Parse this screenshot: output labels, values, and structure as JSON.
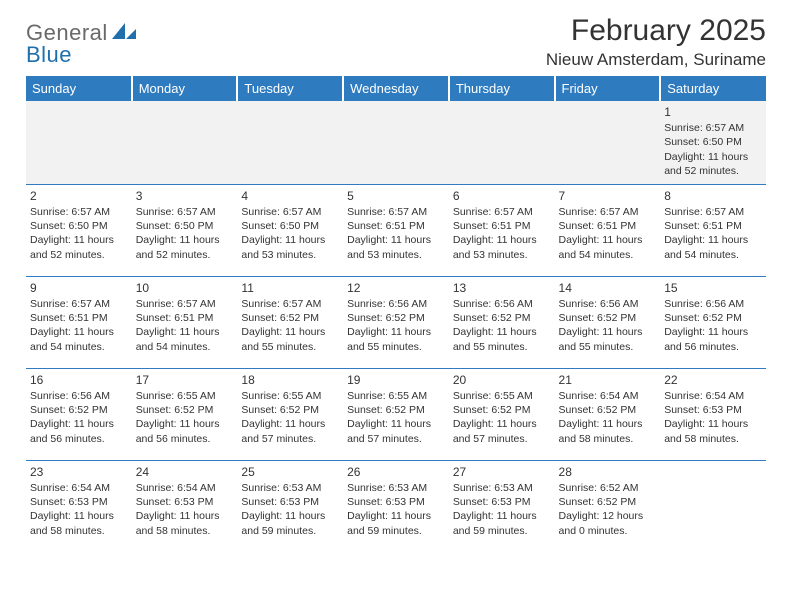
{
  "logo": {
    "part1": "General",
    "part2": "Blue"
  },
  "header": {
    "month_title": "February 2025",
    "location": "Nieuw Amsterdam, Suriname"
  },
  "colors": {
    "header_bg": "#2f7bbf",
    "header_fg": "#ffffff",
    "row_divider": "#2f7bbf",
    "firstrow_bg": "#f2f2f2",
    "text": "#333333",
    "logo_gray": "#6a6a6a",
    "logo_blue": "#1f6fad"
  },
  "weekdays": [
    "Sunday",
    "Monday",
    "Tuesday",
    "Wednesday",
    "Thursday",
    "Friday",
    "Saturday"
  ],
  "weeks": [
    [
      null,
      null,
      null,
      null,
      null,
      null,
      {
        "n": "1",
        "sr": "Sunrise: 6:57 AM",
        "ss": "Sunset: 6:50 PM",
        "dl": "Daylight: 11 hours and 52 minutes."
      }
    ],
    [
      {
        "n": "2",
        "sr": "Sunrise: 6:57 AM",
        "ss": "Sunset: 6:50 PM",
        "dl": "Daylight: 11 hours and 52 minutes."
      },
      {
        "n": "3",
        "sr": "Sunrise: 6:57 AM",
        "ss": "Sunset: 6:50 PM",
        "dl": "Daylight: 11 hours and 52 minutes."
      },
      {
        "n": "4",
        "sr": "Sunrise: 6:57 AM",
        "ss": "Sunset: 6:50 PM",
        "dl": "Daylight: 11 hours and 53 minutes."
      },
      {
        "n": "5",
        "sr": "Sunrise: 6:57 AM",
        "ss": "Sunset: 6:51 PM",
        "dl": "Daylight: 11 hours and 53 minutes."
      },
      {
        "n": "6",
        "sr": "Sunrise: 6:57 AM",
        "ss": "Sunset: 6:51 PM",
        "dl": "Daylight: 11 hours and 53 minutes."
      },
      {
        "n": "7",
        "sr": "Sunrise: 6:57 AM",
        "ss": "Sunset: 6:51 PM",
        "dl": "Daylight: 11 hours and 54 minutes."
      },
      {
        "n": "8",
        "sr": "Sunrise: 6:57 AM",
        "ss": "Sunset: 6:51 PM",
        "dl": "Daylight: 11 hours and 54 minutes."
      }
    ],
    [
      {
        "n": "9",
        "sr": "Sunrise: 6:57 AM",
        "ss": "Sunset: 6:51 PM",
        "dl": "Daylight: 11 hours and 54 minutes."
      },
      {
        "n": "10",
        "sr": "Sunrise: 6:57 AM",
        "ss": "Sunset: 6:51 PM",
        "dl": "Daylight: 11 hours and 54 minutes."
      },
      {
        "n": "11",
        "sr": "Sunrise: 6:57 AM",
        "ss": "Sunset: 6:52 PM",
        "dl": "Daylight: 11 hours and 55 minutes."
      },
      {
        "n": "12",
        "sr": "Sunrise: 6:56 AM",
        "ss": "Sunset: 6:52 PM",
        "dl": "Daylight: 11 hours and 55 minutes."
      },
      {
        "n": "13",
        "sr": "Sunrise: 6:56 AM",
        "ss": "Sunset: 6:52 PM",
        "dl": "Daylight: 11 hours and 55 minutes."
      },
      {
        "n": "14",
        "sr": "Sunrise: 6:56 AM",
        "ss": "Sunset: 6:52 PM",
        "dl": "Daylight: 11 hours and 55 minutes."
      },
      {
        "n": "15",
        "sr": "Sunrise: 6:56 AM",
        "ss": "Sunset: 6:52 PM",
        "dl": "Daylight: 11 hours and 56 minutes."
      }
    ],
    [
      {
        "n": "16",
        "sr": "Sunrise: 6:56 AM",
        "ss": "Sunset: 6:52 PM",
        "dl": "Daylight: 11 hours and 56 minutes."
      },
      {
        "n": "17",
        "sr": "Sunrise: 6:55 AM",
        "ss": "Sunset: 6:52 PM",
        "dl": "Daylight: 11 hours and 56 minutes."
      },
      {
        "n": "18",
        "sr": "Sunrise: 6:55 AM",
        "ss": "Sunset: 6:52 PM",
        "dl": "Daylight: 11 hours and 57 minutes."
      },
      {
        "n": "19",
        "sr": "Sunrise: 6:55 AM",
        "ss": "Sunset: 6:52 PM",
        "dl": "Daylight: 11 hours and 57 minutes."
      },
      {
        "n": "20",
        "sr": "Sunrise: 6:55 AM",
        "ss": "Sunset: 6:52 PM",
        "dl": "Daylight: 11 hours and 57 minutes."
      },
      {
        "n": "21",
        "sr": "Sunrise: 6:54 AM",
        "ss": "Sunset: 6:52 PM",
        "dl": "Daylight: 11 hours and 58 minutes."
      },
      {
        "n": "22",
        "sr": "Sunrise: 6:54 AM",
        "ss": "Sunset: 6:53 PM",
        "dl": "Daylight: 11 hours and 58 minutes."
      }
    ],
    [
      {
        "n": "23",
        "sr": "Sunrise: 6:54 AM",
        "ss": "Sunset: 6:53 PM",
        "dl": "Daylight: 11 hours and 58 minutes."
      },
      {
        "n": "24",
        "sr": "Sunrise: 6:54 AM",
        "ss": "Sunset: 6:53 PM",
        "dl": "Daylight: 11 hours and 58 minutes."
      },
      {
        "n": "25",
        "sr": "Sunrise: 6:53 AM",
        "ss": "Sunset: 6:53 PM",
        "dl": "Daylight: 11 hours and 59 minutes."
      },
      {
        "n": "26",
        "sr": "Sunrise: 6:53 AM",
        "ss": "Sunset: 6:53 PM",
        "dl": "Daylight: 11 hours and 59 minutes."
      },
      {
        "n": "27",
        "sr": "Sunrise: 6:53 AM",
        "ss": "Sunset: 6:53 PM",
        "dl": "Daylight: 11 hours and 59 minutes."
      },
      {
        "n": "28",
        "sr": "Sunrise: 6:52 AM",
        "ss": "Sunset: 6:52 PM",
        "dl": "Daylight: 12 hours and 0 minutes."
      },
      null
    ]
  ]
}
